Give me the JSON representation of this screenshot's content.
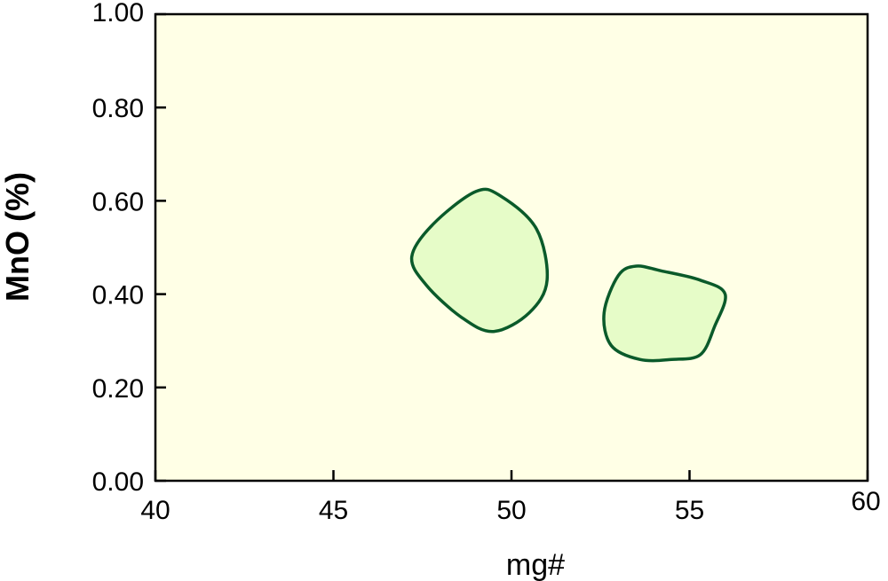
{
  "chart_data": {
    "type": "area",
    "xlabel": "mg#",
    "ylabel": "MnO (%)",
    "xlim": [
      40,
      60
    ],
    "ylim": [
      0,
      1.0
    ],
    "x_ticks": [
      {
        "value": 40,
        "label": "40"
      },
      {
        "value": 45,
        "label": "45"
      },
      {
        "value": 50,
        "label": "50"
      },
      {
        "value": 55,
        "label": "55"
      },
      {
        "value": 60,
        "label": "60"
      }
    ],
    "y_ticks": [
      {
        "value": 0.0,
        "label": "0.00"
      },
      {
        "value": 0.2,
        "label": "0.20"
      },
      {
        "value": 0.4,
        "label": "0.40"
      },
      {
        "value": 0.6,
        "label": "0.60"
      },
      {
        "value": 0.8,
        "label": "0.80"
      },
      {
        "value": 1.0,
        "label": "1.00"
      }
    ],
    "grid": false,
    "colors": {
      "plot_background": "#ffffe6",
      "region_fill": "#e6fcc8",
      "region_stroke": "#0a5a2a",
      "axis": "#000000"
    },
    "regions": [
      {
        "points": [
          [
            47.2,
            0.48
          ],
          [
            47.8,
            0.55
          ],
          [
            49.0,
            0.62
          ],
          [
            49.7,
            0.61
          ],
          [
            50.7,
            0.54
          ],
          [
            51.0,
            0.43
          ],
          [
            50.5,
            0.36
          ],
          [
            49.5,
            0.32
          ],
          [
            48.6,
            0.35
          ],
          [
            47.6,
            0.42
          ]
        ]
      },
      {
        "points": [
          [
            53.5,
            0.46
          ],
          [
            54.2,
            0.45
          ],
          [
            55.3,
            0.43
          ],
          [
            56.0,
            0.4
          ],
          [
            55.7,
            0.33
          ],
          [
            55.3,
            0.27
          ],
          [
            54.5,
            0.26
          ],
          [
            53.6,
            0.26
          ],
          [
            52.8,
            0.29
          ],
          [
            52.6,
            0.36
          ],
          [
            53.0,
            0.44
          ]
        ]
      }
    ]
  }
}
